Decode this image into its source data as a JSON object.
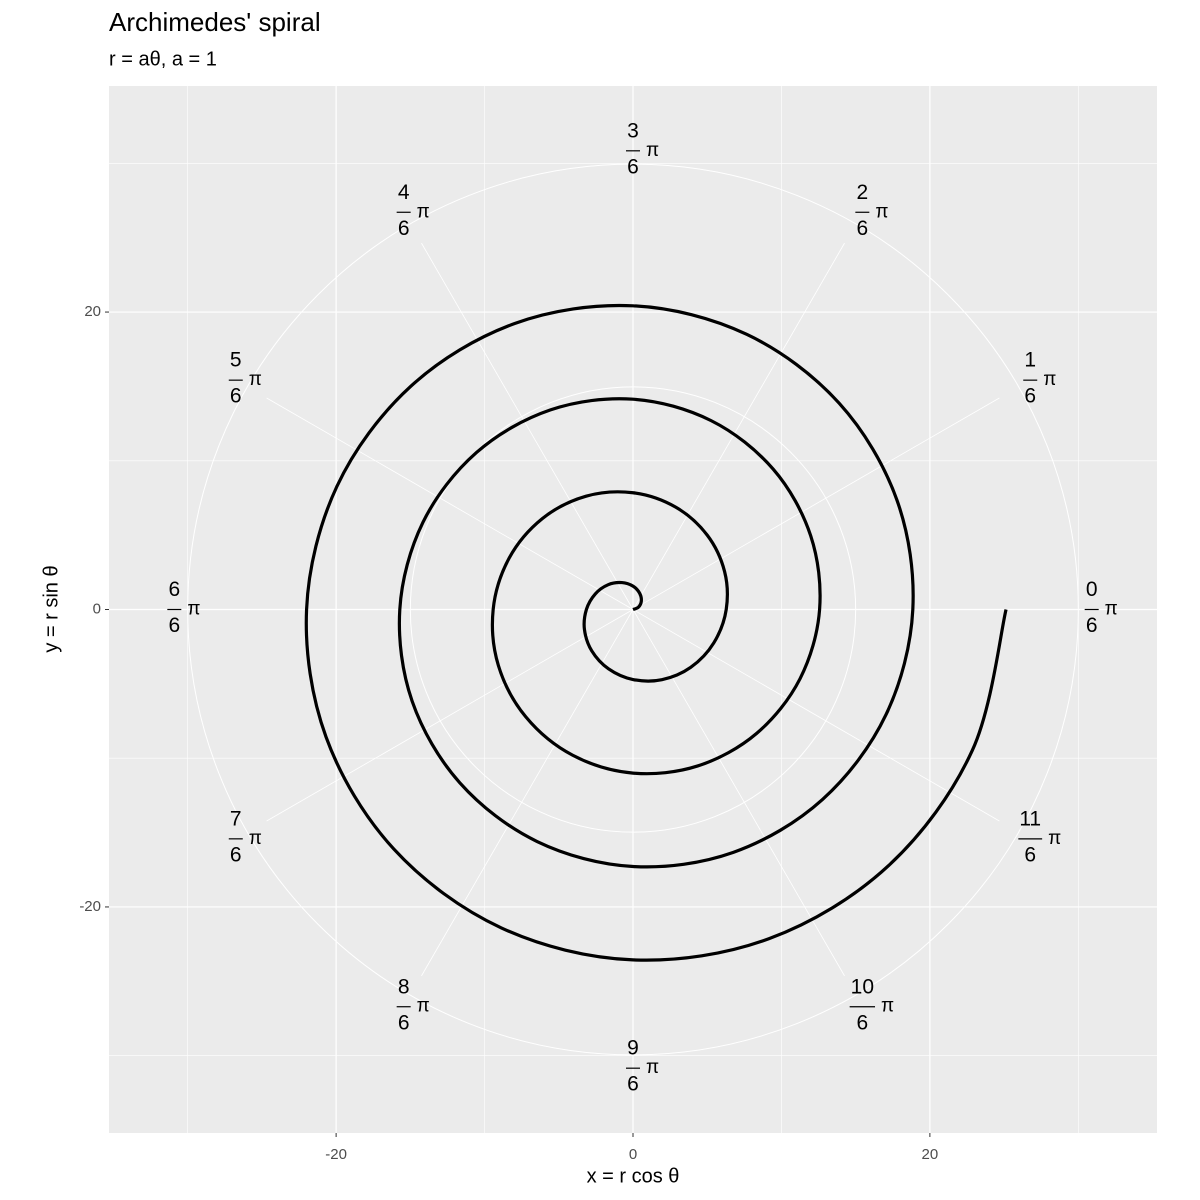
{
  "chart_data": {
    "type": "line",
    "title": "Archimedes' spiral",
    "subtitle": "r = aθ, a = 1",
    "x_label": "x = r cos θ",
    "y_label": "y = r sin θ",
    "color": "#000000",
    "xlim": [
      -35.3,
      35.3
    ],
    "ylim": [
      -35.2,
      35.2
    ],
    "xticks": [
      -20,
      0,
      20
    ],
    "yticks": [
      -20,
      0,
      20
    ],
    "x_minor": [
      -30,
      -10,
      10,
      30
    ],
    "y_minor": [
      -30,
      -10,
      10,
      30
    ],
    "grid": true,
    "polar": {
      "r_grid": [
        15,
        30
      ],
      "numerators": [
        0,
        1,
        2,
        3,
        4,
        5,
        6,
        7,
        8,
        9,
        10,
        11
      ],
      "denominator": 6,
      "symbol": "π"
    },
    "x": [
      0,
      0.36,
      0.56,
      0.45,
      0,
      -0.75,
      -1.67,
      -2.54,
      -3.14,
      -3.27,
      -2.78,
      -1.65,
      0,
      1.95,
      3.89,
      5.44,
      6.28,
      6.17,
      5.0,
      2.86,
      0,
      -3.16,
      -6.11,
      -8.34,
      -9.42,
      -9.07,
      -7.22,
      -4.06,
      0,
      4.36,
      8.33,
      11.25,
      12.57,
      11.97,
      9.44,
      5.26,
      0,
      -5.56,
      -10.55,
      -14.15,
      -15.71,
      -14.88,
      -11.66,
      -6.46,
      0,
      6.76,
      12.77,
      17.05,
      18.85,
      17.78,
      13.88,
      7.66,
      0,
      -7.97,
      -14.99,
      -19.95,
      -21.99,
      -20.68,
      -16.11,
      -8.87,
      0,
      9.17,
      17.22,
      22.86,
      25.13
    ],
    "y": [
      0,
      0.15,
      0.56,
      1.09,
      1.57,
      1.81,
      1.67,
      1.05,
      0,
      -1.35,
      -2.78,
      -3.99,
      -4.71,
      -4.72,
      -3.89,
      -2.25,
      0,
      2.55,
      5.0,
      6.89,
      7.85,
      7.62,
      6.11,
      3.46,
      0,
      -3.76,
      -7.22,
      -9.8,
      -11.0,
      -10.52,
      -8.33,
      -4.66,
      0,
      4.96,
      9.44,
      12.7,
      14.14,
      13.42,
      10.55,
      5.86,
      0,
      -6.16,
      -11.66,
      -15.6,
      -17.28,
      -16.33,
      -12.77,
      -7.06,
      0,
      7.36,
      13.88,
      18.5,
      20.42,
      19.23,
      14.99,
      8.27,
      0,
      -8.57,
      -16.11,
      -21.41,
      -23.56,
      -22.13,
      -17.22,
      -9.47,
      0
    ]
  }
}
